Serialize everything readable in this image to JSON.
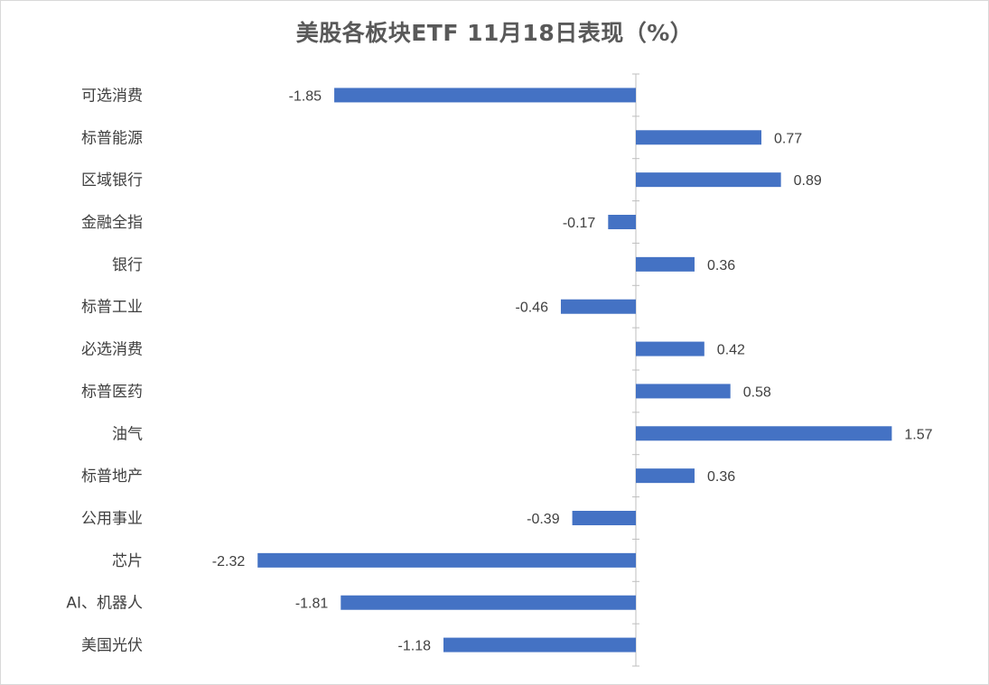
{
  "chart_data": {
    "type": "bar",
    "orientation": "horizontal",
    "title": "美股各板块ETF  11月18日表现（%）",
    "xlabel": "",
    "ylabel": "",
    "categories": [
      "可选消费",
      "标普能源",
      "区域银行",
      "金融全指",
      "银行",
      "标普工业",
      "必选消费",
      "标普医药",
      "油气",
      "标普地产",
      "公用事业",
      "芯片",
      "AI、机器人",
      "美国光伏"
    ],
    "values": [
      -1.85,
      0.77,
      0.89,
      -0.17,
      0.36,
      -0.46,
      0.42,
      0.58,
      1.57,
      0.36,
      -0.39,
      -2.32,
      -1.81,
      -1.18
    ],
    "data_labels": [
      "-1.85",
      "0.77",
      "0.89",
      "-0.17",
      "0.36",
      "-0.46",
      "0.42",
      "0.58",
      "1.57",
      "0.36",
      "-0.39",
      "-2.32",
      "-1.81",
      "-1.18"
    ],
    "xlim": [
      -2.32,
      1.57
    ],
    "bar_color": "#4472C4",
    "axis_color": "#bfbfbf",
    "grid": false,
    "legend": "none"
  }
}
